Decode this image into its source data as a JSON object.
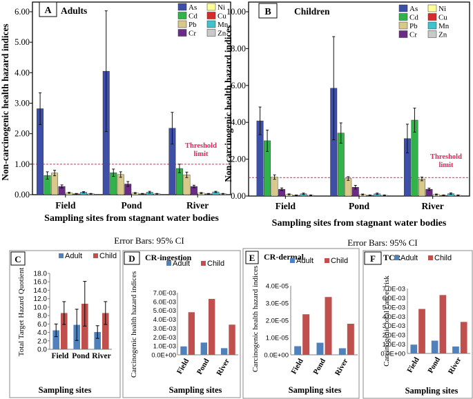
{
  "colors": {
    "As": "#3d4fa6",
    "Cd": "#33b14b",
    "Pb": "#d8c98b",
    "Cr": "#6b2b86",
    "Ni": "#ffff99",
    "Cu": "#d42b2b",
    "Mn": "#3ec2cc",
    "Zn": "#c9c9c9",
    "threshold": "#e0245a",
    "adult": "#4f81bd",
    "child": "#c0504d"
  },
  "chart_data": [
    {
      "id": "A",
      "type": "bar",
      "panel_letter": "A",
      "title": "Adults",
      "ylabel": "Non-carcinogenic health hazard indices",
      "xlabel": "Sampling sites from stagnant water bodies",
      "categories": [
        "Field",
        "Pond",
        "River"
      ],
      "ylim": [
        0,
        6
      ],
      "yticks": [
        "0.00",
        "1.00",
        "2.00",
        "3.00",
        "4.00",
        "5.00",
        "6.00"
      ],
      "threshold": 1.0,
      "threshold_label": [
        "Threshold",
        "limit"
      ],
      "legend": [
        "As",
        "Ni",
        "Cd",
        "Cu",
        "Pb",
        "Mn",
        "Cr",
        "Zn"
      ],
      "series": [
        {
          "name": "As",
          "values": [
            2.82,
            4.05,
            2.18
          ],
          "err": [
            0.52,
            1.98,
            0.52
          ]
        },
        {
          "name": "Cd",
          "values": [
            0.63,
            0.72,
            0.86
          ],
          "err": [
            0.12,
            0.12,
            0.14
          ]
        },
        {
          "name": "Pb",
          "values": [
            0.71,
            0.66,
            0.65
          ],
          "err": [
            0.09,
            0.09,
            0.09
          ]
        },
        {
          "name": "Cr",
          "values": [
            0.27,
            0.35,
            0.27
          ],
          "err": [
            0.05,
            0.08,
            0.04
          ]
        },
        {
          "name": "Ni",
          "values": [
            0.06,
            0.05,
            0.05
          ],
          "err": [
            0.02,
            0.02,
            0.02
          ]
        },
        {
          "name": "Cu",
          "values": [
            0.03,
            0.03,
            0.03
          ],
          "err": [
            0.01,
            0.01,
            0.01
          ]
        },
        {
          "name": "Mn",
          "values": [
            0.08,
            0.08,
            0.09
          ],
          "err": [
            0.02,
            0.03,
            0.02
          ]
        },
        {
          "name": "Zn",
          "values": [
            0.03,
            0.03,
            0.03
          ],
          "err": [
            0.01,
            0.01,
            0.01
          ]
        }
      ]
    },
    {
      "id": "B",
      "type": "bar",
      "panel_letter": "B",
      "title": "Children",
      "ylabel": "Non-carcinogenic health hazard indices",
      "xlabel": "Sampling sites from stagnant water bodies",
      "categories": [
        "Field",
        "Pond",
        "River"
      ],
      "ylim": [
        0,
        10
      ],
      "yticks": [
        "0.00",
        "2.00",
        "4.00",
        "6.00",
        "8.00",
        "10.00"
      ],
      "threshold": 1.0,
      "threshold_label": [
        "Threshold",
        "limit"
      ],
      "legend": [
        "As",
        "Ni",
        "Cd",
        "Cu",
        "Pb",
        "Mn",
        "Cr",
        "Zn"
      ],
      "series": [
        {
          "name": "As",
          "values": [
            4.08,
            5.85,
            3.12
          ],
          "err": [
            0.75,
            2.8,
            0.78
          ]
        },
        {
          "name": "Cd",
          "values": [
            3.0,
            3.42,
            4.12
          ],
          "err": [
            0.58,
            0.55,
            0.65
          ]
        },
        {
          "name": "Pb",
          "values": [
            1.03,
            0.95,
            0.93
          ],
          "err": [
            0.12,
            0.1,
            0.1
          ]
        },
        {
          "name": "Cr",
          "values": [
            0.37,
            0.48,
            0.37
          ],
          "err": [
            0.07,
            0.1,
            0.06
          ]
        },
        {
          "name": "Ni",
          "values": [
            0.09,
            0.08,
            0.08
          ],
          "err": [
            0.03,
            0.03,
            0.03
          ]
        },
        {
          "name": "Cu",
          "values": [
            0.04,
            0.04,
            0.04
          ],
          "err": [
            0.02,
            0.02,
            0.02
          ]
        },
        {
          "name": "Mn",
          "values": [
            0.12,
            0.12,
            0.13
          ],
          "err": [
            0.04,
            0.04,
            0.04
          ]
        },
        {
          "name": "Zn",
          "values": [
            0.04,
            0.04,
            0.04
          ],
          "err": [
            0.02,
            0.02,
            0.02
          ]
        }
      ]
    },
    {
      "id": "C",
      "type": "bar",
      "panel_letter": "C",
      "title": "",
      "ylabel": "Total Target Hazard Quotient",
      "xlabel": "Sampling  sites",
      "categories": [
        "Field",
        "Pond",
        "River"
      ],
      "ylim": [
        0,
        18
      ],
      "yticks": [
        "0.0",
        "2.0",
        "4.0",
        "6.0",
        "8.0",
        "10.0",
        "12.0",
        "14.0",
        "16.0",
        "18.0"
      ],
      "legend": [
        "Adult",
        "Child"
      ],
      "series": [
        {
          "name": "Adult",
          "values": [
            4.5,
            5.8,
            4.1
          ],
          "err": [
            1.5,
            3.7,
            1.5
          ]
        },
        {
          "name": "Child",
          "values": [
            8.6,
            10.8,
            8.6
          ],
          "err": [
            2.7,
            5.3,
            2.7
          ]
        }
      ]
    },
    {
      "id": "D",
      "type": "bar",
      "panel_letter": "D",
      "title": "CR-ingestion",
      "ylabel": "Carcinogenic  health  hazard  indices",
      "xlabel": "Sampling  sites",
      "categories": [
        "Field",
        "Pond",
        "River"
      ],
      "ylim": [
        0,
        0.007
      ],
      "yticks": [
        "0.0E+00",
        "1.0E-03",
        "2.0E-03",
        "3.0E-03",
        "4.0E-03",
        "5.0E-03",
        "6.0E-03",
        "7.0E-03"
      ],
      "legend": [
        "Adult",
        "Child"
      ],
      "series": [
        {
          "name": "Adult",
          "values": [
            0.00095,
            0.00138,
            0.00075
          ]
        },
        {
          "name": "Child",
          "values": [
            0.0048,
            0.0063,
            0.0034
          ]
        }
      ]
    },
    {
      "id": "E",
      "type": "bar",
      "panel_letter": "E",
      "title": "CR-dermal",
      "ylabel": "Carcinogenic  health  hazard  indices",
      "xlabel": "Sampling  sites",
      "categories": [
        "Field",
        "Pond",
        "River"
      ],
      "ylim": [
        0,
        4e-05
      ],
      "yticks": [
        "0.0E+00",
        "1.0E-05",
        "2.0E-05",
        "3.0E-05",
        "4.0E-05"
      ],
      "legend": [
        "Adult",
        "Child"
      ],
      "series": [
        {
          "name": "Adult",
          "values": [
            5e-06,
            7e-06,
            3.8e-06
          ]
        },
        {
          "name": "Child",
          "values": [
            2.35e-05,
            3.35e-05,
            1.8e-05
          ]
        }
      ]
    },
    {
      "id": "F",
      "type": "bar",
      "panel_letter": "F",
      "title": "TCR",
      "ylabel": "Carcinogenic  total  cancer  risk",
      "xlabel": "Sampling  sites",
      "categories": [
        "Field",
        "Pond",
        "River"
      ],
      "ylim": [
        0,
        0.007
      ],
      "yticks": [
        "0.0E+00",
        "1.0E-03",
        "2.0E-03",
        "3.0E-03",
        "4.0E-03",
        "5.0E-03",
        "6.0E-03",
        "7.0E-03"
      ],
      "legend": [
        "Adult",
        "Child"
      ],
      "series": [
        {
          "name": "Adult",
          "values": [
            0.00095,
            0.00138,
            0.00075
          ]
        },
        {
          "name": "Child",
          "values": [
            0.0048,
            0.0063,
            0.0034
          ]
        }
      ]
    }
  ],
  "captions": {
    "error_bars_left": "Error Bars: 95% CI",
    "error_bars_right": "Error Bars: 95% CI"
  }
}
